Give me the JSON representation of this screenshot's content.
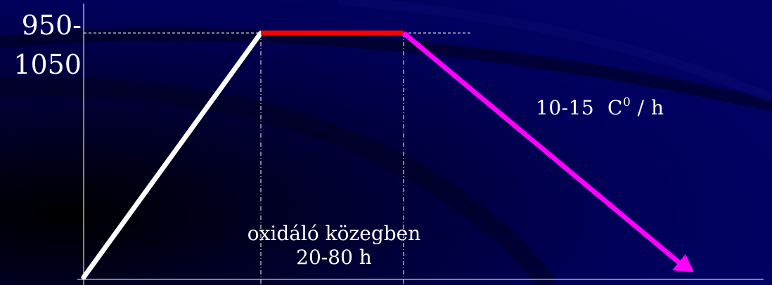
{
  "diagram": {
    "y_value_line1": "950-",
    "y_value_line2": "1050",
    "cooling_rate": {
      "value": "10-15  C",
      "superscript": "0",
      "unit": " / h"
    },
    "hold_condition": {
      "line1": "oxidáló közegben",
      "line2": "20-80 h"
    },
    "colors": {
      "background": "#01015c",
      "heating_line": "#ffffff",
      "holding_line": "#ff0000",
      "cooling_arrow": "#ff00ff",
      "axis": "#ffffff"
    }
  }
}
